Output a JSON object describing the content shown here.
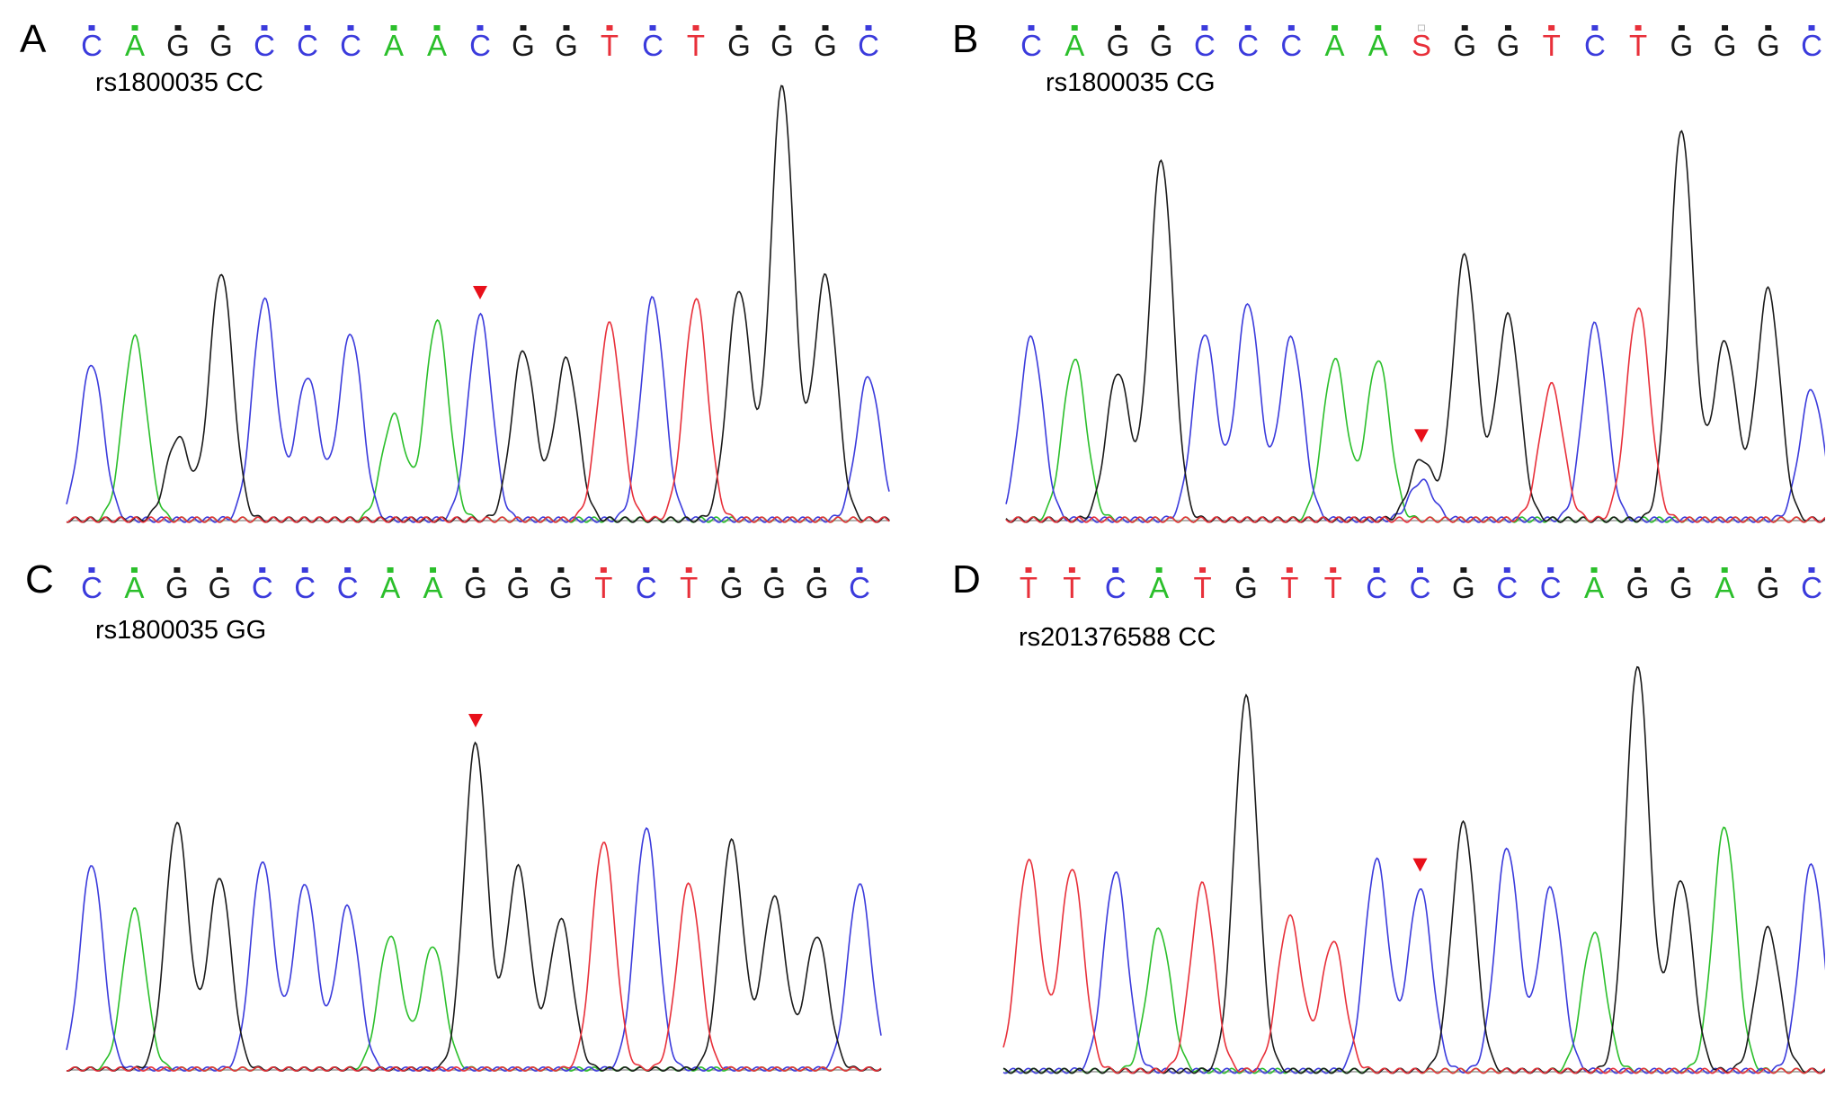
{
  "colors": {
    "A": "#2bbf2b",
    "C": "#3b3bdc",
    "G": "#1a1a1a",
    "T": "#e8303a",
    "S": "#e8303a",
    "marker": "#e8101a"
  },
  "chart_data": [
    {
      "type": "chromatogram",
      "panel": "A",
      "sample": "rs1800035 CC",
      "bases": [
        "C",
        "A",
        "G",
        "G",
        "C",
        "C",
        "C",
        "A",
        "A",
        "C",
        "G",
        "G",
        "T",
        "C",
        "T",
        "G",
        "G",
        "G",
        "C"
      ],
      "peaks": [
        {
          "base": "C",
          "height": 0.36
        },
        {
          "base": "A",
          "height": 0.42
        },
        {
          "base": "G",
          "height": 0.19
        },
        {
          "base": "G",
          "height": 0.57
        },
        {
          "base": "C",
          "height": 0.51
        },
        {
          "base": "C",
          "height": 0.33
        },
        {
          "base": "C",
          "height": 0.43
        },
        {
          "base": "A",
          "height": 0.24
        },
        {
          "base": "A",
          "height": 0.46
        },
        {
          "base": "C",
          "height": 0.47
        },
        {
          "base": "G",
          "height": 0.39
        },
        {
          "base": "G",
          "height": 0.37
        },
        {
          "base": "T",
          "height": 0.45
        },
        {
          "base": "C",
          "height": 0.51
        },
        {
          "base": "T",
          "height": 0.51
        },
        {
          "base": "G",
          "height": 0.53
        },
        {
          "base": "G",
          "height": 1.0
        },
        {
          "base": "G",
          "height": 0.56
        },
        {
          "base": "C",
          "height": 0.33
        }
      ],
      "marker_index": 9
    },
    {
      "type": "chromatogram",
      "panel": "B",
      "sample": "rs1800035 CG",
      "bases": [
        "C",
        "A",
        "G",
        "G",
        "C",
        "C",
        "C",
        "A",
        "A",
        "S",
        "G",
        "G",
        "T",
        "C",
        "T",
        "G",
        "G",
        "G",
        "C"
      ],
      "peaks": [
        {
          "base": "C",
          "height": 0.42
        },
        {
          "base": "A",
          "height": 0.37
        },
        {
          "base": "G",
          "height": 0.34
        },
        {
          "base": "G",
          "height": 0.83
        },
        {
          "base": "C",
          "height": 0.43
        },
        {
          "base": "C",
          "height": 0.5
        },
        {
          "base": "C",
          "height": 0.42
        },
        {
          "base": "A",
          "height": 0.37
        },
        {
          "base": "A",
          "height": 0.37
        },
        {
          "base": "S",
          "height": 0.14,
          "secondary": "C",
          "secondary_height": 0.09
        },
        {
          "base": "G",
          "height": 0.61
        },
        {
          "base": "G",
          "height": 0.47
        },
        {
          "base": "T",
          "height": 0.31
        },
        {
          "base": "C",
          "height": 0.45
        },
        {
          "base": "T",
          "height": 0.49
        },
        {
          "base": "G",
          "height": 0.9
        },
        {
          "base": "G",
          "height": 0.41
        },
        {
          "base": "G",
          "height": 0.53
        },
        {
          "base": "C",
          "height": 0.3
        }
      ],
      "marker_index": 9
    },
    {
      "type": "chromatogram",
      "panel": "C",
      "sample": "rs1800035 GG",
      "bases": [
        "C",
        "A",
        "G",
        "G",
        "C",
        "C",
        "C",
        "A",
        "A",
        "G",
        "G",
        "G",
        "T",
        "C",
        "T",
        "G",
        "G",
        "G",
        "C"
      ],
      "peaks": [
        {
          "base": "C",
          "height": 0.63
        },
        {
          "base": "A",
          "height": 0.49
        },
        {
          "base": "G",
          "height": 0.76
        },
        {
          "base": "G",
          "height": 0.59
        },
        {
          "base": "C",
          "height": 0.64
        },
        {
          "base": "C",
          "height": 0.57
        },
        {
          "base": "C",
          "height": 0.5
        },
        {
          "base": "A",
          "height": 0.41
        },
        {
          "base": "A",
          "height": 0.38
        },
        {
          "base": "G",
          "height": 1.0
        },
        {
          "base": "G",
          "height": 0.62
        },
        {
          "base": "G",
          "height": 0.46
        },
        {
          "base": "T",
          "height": 0.7
        },
        {
          "base": "C",
          "height": 0.74
        },
        {
          "base": "T",
          "height": 0.57
        },
        {
          "base": "G",
          "height": 0.7
        },
        {
          "base": "G",
          "height": 0.53
        },
        {
          "base": "G",
          "height": 0.41
        },
        {
          "base": "C",
          "height": 0.57
        }
      ],
      "marker_index": 9
    },
    {
      "type": "chromatogram",
      "panel": "D",
      "sample": "rs201376588 CC",
      "bases": [
        "T",
        "T",
        "C",
        "A",
        "T",
        "G",
        "T",
        "T",
        "C",
        "C",
        "G",
        "C",
        "C",
        "A",
        "G",
        "G",
        "A",
        "G",
        "C"
      ],
      "peaks": [
        {
          "base": "T",
          "height": 0.52
        },
        {
          "base": "T",
          "height": 0.5
        },
        {
          "base": "C",
          "height": 0.49
        },
        {
          "base": "A",
          "height": 0.35
        },
        {
          "base": "T",
          "height": 0.46
        },
        {
          "base": "G",
          "height": 0.92
        },
        {
          "base": "T",
          "height": 0.38
        },
        {
          "base": "T",
          "height": 0.32
        },
        {
          "base": "C",
          "height": 0.52
        },
        {
          "base": "C",
          "height": 0.45
        },
        {
          "base": "G",
          "height": 0.61
        },
        {
          "base": "C",
          "height": 0.55
        },
        {
          "base": "C",
          "height": 0.45
        },
        {
          "base": "A",
          "height": 0.34
        },
        {
          "base": "G",
          "height": 1.0
        },
        {
          "base": "G",
          "height": 0.47
        },
        {
          "base": "A",
          "height": 0.6
        },
        {
          "base": "G",
          "height": 0.35
        },
        {
          "base": "C",
          "height": 0.51
        }
      ],
      "marker_index": 9
    }
  ]
}
